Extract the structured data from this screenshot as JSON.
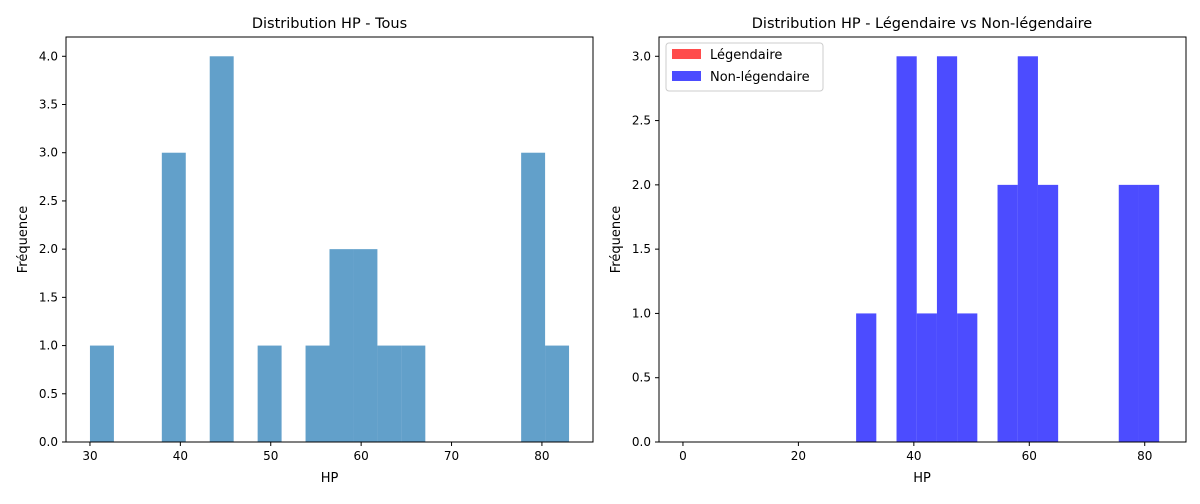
{
  "chart_data": [
    {
      "type": "histogram",
      "title": "Distribution HP - Tous",
      "xlabel": "HP",
      "ylabel": "Fréquence",
      "xlim": [
        27.35,
        85.65
      ],
      "ylim": [
        0,
        4.2
      ],
      "xticks": [
        30,
        40,
        50,
        60,
        70,
        80
      ],
      "yticks": [
        0.0,
        0.5,
        1.0,
        1.5,
        2.0,
        2.5,
        3.0,
        3.5,
        4.0
      ],
      "legend": null,
      "series": [
        {
          "color": "#1f77b4",
          "alpha": 0.7,
          "bins": [
            {
              "x0": 30.0,
              "x1": 32.65,
              "count": 1
            },
            {
              "x0": 32.65,
              "x1": 35.3,
              "count": 0
            },
            {
              "x0": 35.3,
              "x1": 37.95,
              "count": 0
            },
            {
              "x0": 37.95,
              "x1": 40.6,
              "count": 3
            },
            {
              "x0": 40.6,
              "x1": 43.25,
              "count": 0
            },
            {
              "x0": 43.25,
              "x1": 45.9,
              "count": 4
            },
            {
              "x0": 45.9,
              "x1": 48.55,
              "count": 0
            },
            {
              "x0": 48.55,
              "x1": 51.2,
              "count": 1
            },
            {
              "x0": 51.2,
              "x1": 53.85,
              "count": 0
            },
            {
              "x0": 53.85,
              "x1": 56.5,
              "count": 1
            },
            {
              "x0": 56.5,
              "x1": 59.15,
              "count": 2
            },
            {
              "x0": 59.15,
              "x1": 61.8,
              "count": 2
            },
            {
              "x0": 61.8,
              "x1": 64.45,
              "count": 1
            },
            {
              "x0": 64.45,
              "x1": 67.1,
              "count": 1
            },
            {
              "x0": 67.1,
              "x1": 69.75,
              "count": 0
            },
            {
              "x0": 69.75,
              "x1": 72.4,
              "count": 0
            },
            {
              "x0": 72.4,
              "x1": 75.05,
              "count": 0
            },
            {
              "x0": 75.05,
              "x1": 77.7,
              "count": 0
            },
            {
              "x0": 77.7,
              "x1": 80.35,
              "count": 3
            },
            {
              "x0": 80.35,
              "x1": 83.0,
              "count": 1
            }
          ]
        }
      ]
    },
    {
      "type": "histogram",
      "title": "Distribution HP - Légendaire vs Non-légendaire",
      "xlabel": "HP",
      "ylabel": "Fréquence",
      "xlim": [
        -4.15,
        87.15
      ],
      "ylim": [
        0,
        3.15
      ],
      "xticks": [
        0,
        20,
        40,
        60,
        80
      ],
      "yticks": [
        0.0,
        0.5,
        1.0,
        1.5,
        2.0,
        2.5,
        3.0
      ],
      "legend": {
        "position": "top-left"
      },
      "series": [
        {
          "name": "Légendaire",
          "color": "#ff0000",
          "alpha": 0.7,
          "bins": []
        },
        {
          "name": "Non-légendaire",
          "color": "#0000ff",
          "alpha": 0.7,
          "bins": [
            {
              "x0": 30.0,
              "x1": 33.5,
              "count": 1
            },
            {
              "x0": 33.5,
              "x1": 37.0,
              "count": 0
            },
            {
              "x0": 37.0,
              "x1": 40.5,
              "count": 3
            },
            {
              "x0": 40.5,
              "x1": 44.0,
              "count": 1
            },
            {
              "x0": 44.0,
              "x1": 47.5,
              "count": 3
            },
            {
              "x0": 47.5,
              "x1": 51.0,
              "count": 1
            },
            {
              "x0": 51.0,
              "x1": 54.5,
              "count": 0
            },
            {
              "x0": 54.5,
              "x1": 58.0,
              "count": 2
            },
            {
              "x0": 58.0,
              "x1": 61.5,
              "count": 3
            },
            {
              "x0": 61.5,
              "x1": 65.0,
              "count": 2
            },
            {
              "x0": 65.0,
              "x1": 68.5,
              "count": 0
            },
            {
              "x0": 68.5,
              "x1": 72.0,
              "count": 0
            },
            {
              "x0": 72.0,
              "x1": 75.5,
              "count": 0
            },
            {
              "x0": 75.5,
              "x1": 79.0,
              "count": 2
            },
            {
              "x0": 79.0,
              "x1": 82.5,
              "count": 2
            }
          ]
        }
      ]
    }
  ]
}
